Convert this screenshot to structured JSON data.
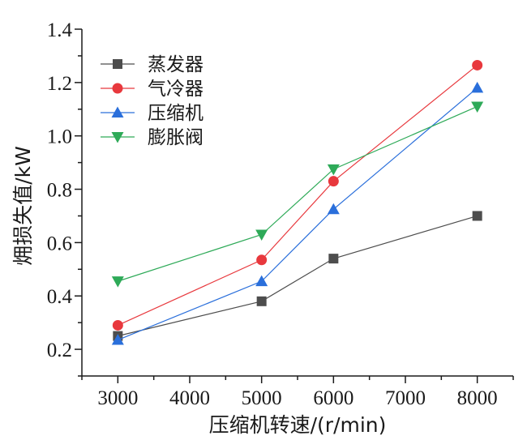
{
  "chart_data": {
    "type": "line",
    "title": "",
    "xlabel": "压缩机转速/(r/min)",
    "ylabel": "㶲损失值/kW",
    "xlim": [
      2500,
      8500
    ],
    "ylim": [
      0.1,
      1.4
    ],
    "xticks": [
      3000,
      4000,
      5000,
      6000,
      7000,
      8000
    ],
    "yticks": [
      0.2,
      0.4,
      0.6,
      0.8,
      1.0,
      1.2,
      1.4
    ],
    "x": [
      3000,
      5000,
      6000,
      8000
    ],
    "legend_position": "top-left",
    "grid": false,
    "series": [
      {
        "name": "蒸发器",
        "values": [
          0.25,
          0.38,
          0.54,
          0.7
        ],
        "color": "#4d4d4d",
        "marker": "square"
      },
      {
        "name": "气冷器",
        "values": [
          0.29,
          0.535,
          0.83,
          1.265
        ],
        "color": "#e8383d",
        "marker": "circle"
      },
      {
        "name": "压缩机",
        "values": [
          0.235,
          0.455,
          0.725,
          1.18
        ],
        "color": "#2a6fdb",
        "marker": "triangle-up"
      },
      {
        "name": "膨胀阀",
        "values": [
          0.455,
          0.63,
          0.875,
          1.11
        ],
        "color": "#2eaa58",
        "marker": "triangle-down"
      }
    ]
  }
}
